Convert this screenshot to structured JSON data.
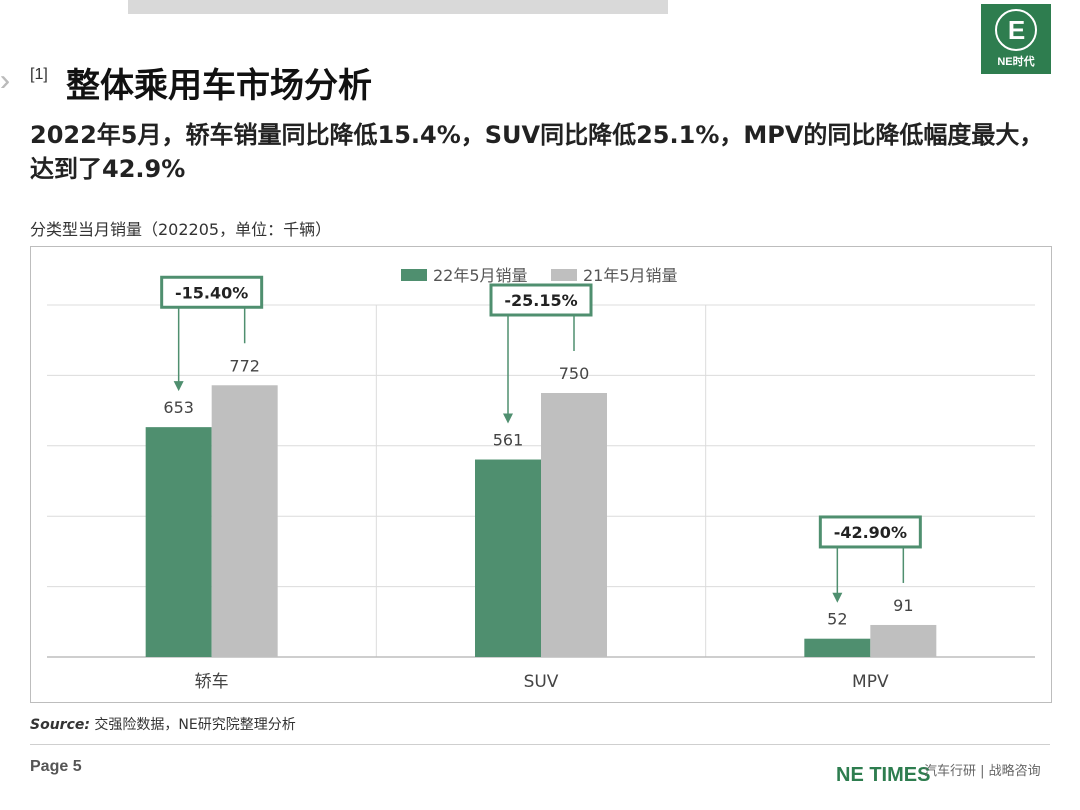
{
  "header": {
    "section": "[1]",
    "title": "整体乘用车市场分析",
    "subtitle": "2022年5月，轿车销量同比降低15.4%，SUV同比降低25.1%，MPV的同比降低幅度最大，达到了42.9%",
    "caption": "分类型当月销量（202205，单位：千辆）"
  },
  "logo": {
    "mark": "E",
    "text": "NE时代"
  },
  "colors": {
    "accent": "#4f8f6f",
    "gray": "#bfbfbf",
    "brand": "#2e7d4f"
  },
  "chart_data": {
    "type": "bar",
    "categories": [
      "轿车",
      "SUV",
      "MPV"
    ],
    "series": [
      {
        "name": "22年5月销量",
        "values": [
          653,
          561,
          52
        ],
        "color": "#4f8f6f"
      },
      {
        "name": "21年5月销量",
        "values": [
          772,
          750,
          91
        ],
        "color": "#bfbfbf"
      }
    ],
    "changes": [
      "-15.40%",
      "-25.15%",
      "-42.90%"
    ],
    "ylim": [
      0,
      1000
    ],
    "grid": true,
    "legend": "top-center"
  },
  "footer": {
    "source_label": "Source:",
    "source_text": " 交强险数据，NE研究院整理分析",
    "page": "Page 5",
    "brand": "NE TIMES",
    "tagline": "汽车行研 | 战略咨询"
  }
}
